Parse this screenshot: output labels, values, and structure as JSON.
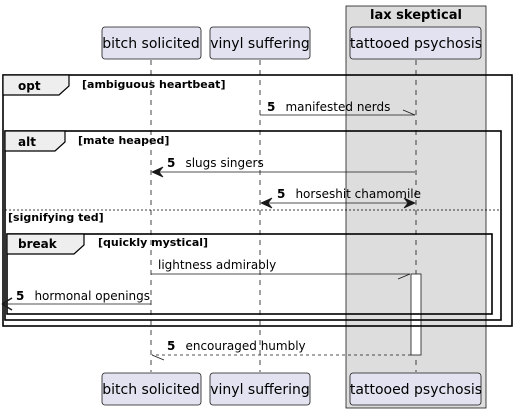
{
  "box": {
    "title": "lax skeptical"
  },
  "participants": [
    {
      "id": "p1",
      "label": "bitch solicited"
    },
    {
      "id": "p2",
      "label": "vinyl suffering"
    },
    {
      "id": "p3",
      "label": "tattooed psychosis"
    }
  ],
  "fragments": {
    "opt": {
      "keyword": "opt",
      "condition": "[ambiguous heartbeat]"
    },
    "alt": {
      "keyword": "alt",
      "condition": "[mate heaped]",
      "else_condition": "[signifying ted]"
    },
    "break": {
      "keyword": "break",
      "condition": "[quickly mystical]"
    }
  },
  "messages": [
    {
      "number": "5",
      "text": "manifested nerds"
    },
    {
      "number": "5",
      "text": "slugs singers"
    },
    {
      "number": "5",
      "text": "horseshit chamomile"
    },
    {
      "number": "",
      "text": "lightness admirably"
    },
    {
      "number": "5",
      "text": "hormonal openings"
    },
    {
      "number": "5",
      "text": "encouraged humbly"
    }
  ],
  "colors": {
    "participant_fill": "#e2e2f0",
    "participant_border": "#181818",
    "box_fill": "#dddddd",
    "lifeline": "#181818"
  }
}
